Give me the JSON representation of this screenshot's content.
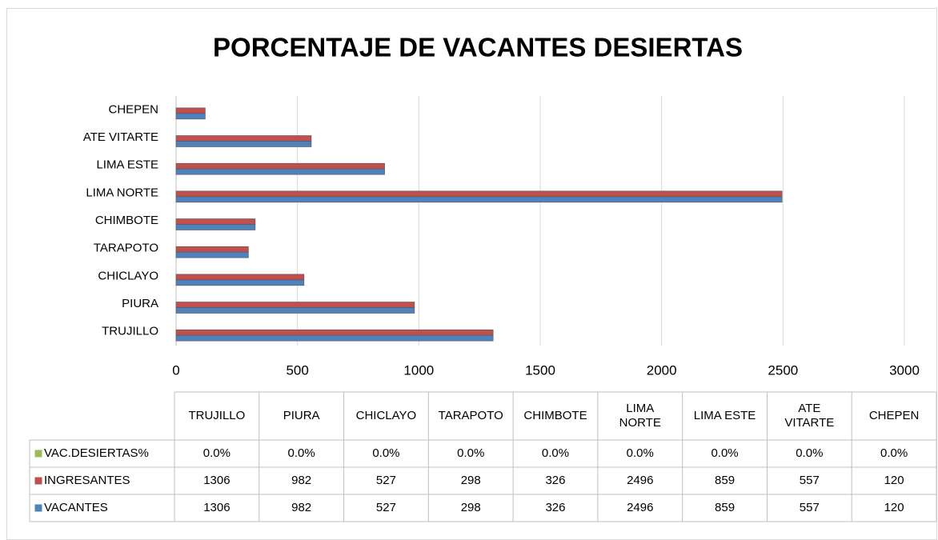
{
  "chart_data": {
    "type": "bar",
    "orientation": "horizontal",
    "title": "PORCENTAJE DE VACANTES DESIERTAS",
    "categories": [
      "TRUJILLO",
      "PIURA",
      "CHICLAYO",
      "TARAPOTO",
      "CHIMBOTE",
      "LIMA NORTE",
      "LIMA ESTE",
      "ATE VITARTE",
      "CHEPEN"
    ],
    "series": [
      {
        "name": "VAC.DESIERTAS%",
        "color": "#9bbb59",
        "values": [
          0,
          0,
          0,
          0,
          0,
          0,
          0,
          0,
          0
        ],
        "value_labels": [
          "0.0%",
          "0.0%",
          "0.0%",
          "0.0%",
          "0.0%",
          "0.0%",
          "0.0%",
          "0.0%",
          "0.0%"
        ]
      },
      {
        "name": "INGRESANTES",
        "color": "#c0504d",
        "values": [
          1306,
          982,
          527,
          298,
          326,
          2496,
          859,
          557,
          120
        ]
      },
      {
        "name": "VACANTES",
        "color": "#4f81bd",
        "values": [
          1306,
          982,
          527,
          298,
          326,
          2496,
          859,
          557,
          120
        ]
      }
    ],
    "xlim": [
      0,
      3000
    ],
    "xticks": [
      0,
      500,
      1000,
      1500,
      2000,
      2500,
      3000
    ],
    "grid": true,
    "data_table": true
  }
}
